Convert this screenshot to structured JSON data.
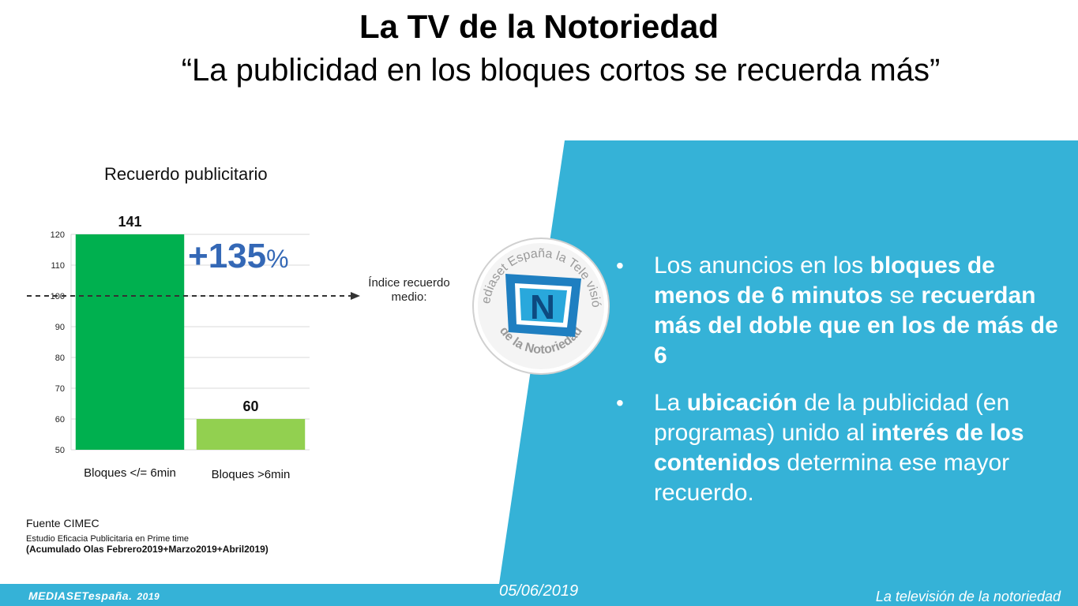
{
  "header": {
    "title": "La TV de la Notoriedad",
    "subtitle": "“La publicidad en los bloques cortos se recuerda más”"
  },
  "chart_data": {
    "type": "bar",
    "title": "Recuerdo publicitario",
    "categories": [
      "Bloques </= 6min",
      "Bloques >6min"
    ],
    "values": [
      141,
      60
    ],
    "data_labels": [
      "141",
      "60"
    ],
    "ylim": [
      50,
      120
    ],
    "yticks": [
      "50",
      "60",
      "70",
      "80",
      "90",
      "100",
      "110",
      "120"
    ],
    "grid": true,
    "bar_colors": [
      "#00b04f",
      "#92d050"
    ],
    "reference_line": {
      "value": 100,
      "label_line1": "Índice recuerdo",
      "label_line2": "medio:"
    },
    "annotation": {
      "value": "+135",
      "unit": "%"
    }
  },
  "source": {
    "line1": "Fuente CIMEC",
    "line2": "Estudio Eficacia Publicitaria en Prime time",
    "line3": "(Acumulado Olas Febrero2019+Marzo2019+Abril2019)"
  },
  "badge": {
    "text_top": "Mediaset España la Tele visión",
    "text_bottom": "de la Notoriedad",
    "letter": "N"
  },
  "bullets": [
    [
      {
        "t": "Los anuncios en los ",
        "b": false
      },
      {
        "t": "bloques de menos de 6 minutos",
        "b": true
      },
      {
        "t": " se ",
        "b": false
      },
      {
        "t": "recuerdan más del doble que en los de más de 6",
        "b": true
      }
    ],
    [
      {
        "t": "La ",
        "b": false
      },
      {
        "t": "ubicación",
        "b": true
      },
      {
        "t": " de la publicidad (en programas) unido al ",
        "b": false
      },
      {
        "t": "interés de los contenidos",
        "b": true
      },
      {
        "t": " determina ese mayor recuerdo.",
        "b": false
      }
    ]
  ],
  "bullet_symbol": "•",
  "footer": {
    "date": "05/06/2019",
    "brand": "MEDIASETespaña.",
    "brand_year": "2019",
    "tagline": "La televisión de la notoriedad"
  },
  "colors": {
    "panel": "#35b2d7",
    "footer_bar": "#35b2d7",
    "accent_text": "#3468b6",
    "badge_blue": "#1f7fc1"
  }
}
